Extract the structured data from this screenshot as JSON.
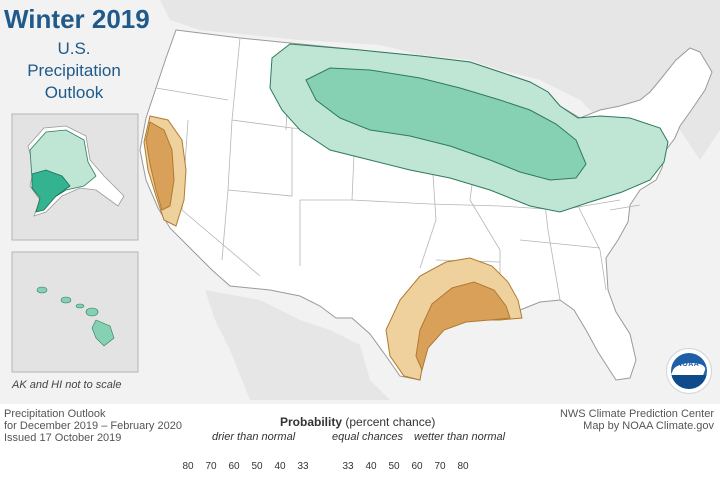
{
  "title": "Winter 2019",
  "subtitle_lines": [
    "U.S.",
    "Precipitation",
    "Outlook"
  ],
  "inset_note": "AK and HI not to scale",
  "footer_left": [
    "Precipitation Outlook",
    "for December 2019 – February 2020",
    "Issued 17 October 2019"
  ],
  "footer_right": [
    "NWS Climate Prediction Center",
    "Map by NOAA Climate.gov"
  ],
  "legend": {
    "title_bold": "Probability",
    "title_rest": " (percent chance)",
    "drier_label": "drier than normal",
    "equal_label": "equal chances",
    "wetter_label": "wetter than normal",
    "dry_ticks": [
      "80",
      "70",
      "60",
      "50",
      "40",
      "33"
    ],
    "wet_ticks": [
      "33",
      "40",
      "50",
      "60",
      "70",
      "80"
    ],
    "dry_colors": [
      "#8a3a1b",
      "#a8502b",
      "#c4713a",
      "#d9a059",
      "#efd19d"
    ],
    "wet_colors": [
      "#bfe6d4",
      "#86d1b4",
      "#33b38f",
      "#1d8f78",
      "#10614f"
    ]
  },
  "regions": [
    {
      "name": "Northern tier and Great Lakes",
      "category": "wetter than normal",
      "probability": "40-50"
    },
    {
      "name": "Northeast",
      "category": "wetter than normal",
      "probability": "33-40"
    },
    {
      "name": "Alaska",
      "category": "wetter than normal",
      "probability": "33-50"
    },
    {
      "name": "Hawaii",
      "category": "wetter than normal",
      "probability": "40-50"
    },
    {
      "name": "California coast",
      "category": "drier than normal",
      "probability": "33-50"
    },
    {
      "name": "Gulf Coast Texas and Louisiana",
      "category": "drier than normal",
      "probability": "33-50"
    }
  ],
  "colors": {
    "land": "#ffffff",
    "outside": "#dedede",
    "water": "#f2f2f2",
    "border": "#9a9a9a",
    "wet_light": "#bfe6d4",
    "wet_mid": "#86d1b4",
    "wet_dark": "#33b38f",
    "dry_light": "#efd19d",
    "dry_mid": "#d9a059",
    "title": "#1f5a8a"
  },
  "logo_text": "NOAA"
}
